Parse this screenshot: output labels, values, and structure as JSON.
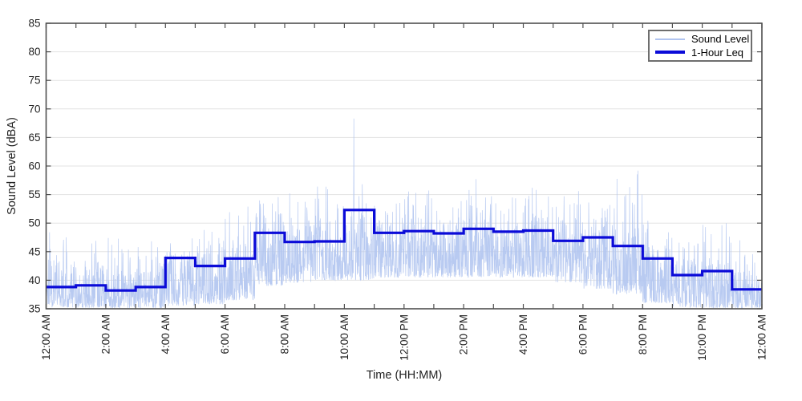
{
  "chart_data": {
    "type": "line",
    "title": "",
    "xlabel": "Time (HH:MM)",
    "ylabel": "Sound Level (dBA)",
    "x_range_hours": [
      0,
      24
    ],
    "ylim": [
      35,
      85
    ],
    "yticks": [
      35,
      40,
      45,
      50,
      55,
      60,
      65,
      70,
      75,
      80,
      85
    ],
    "xtick_every_hours": 1,
    "xtick_labels": [
      {
        "hour": 0,
        "label": "12:00 AM"
      },
      {
        "hour": 2,
        "label": "2:00 AM"
      },
      {
        "hour": 4,
        "label": "4:00 AM"
      },
      {
        "hour": 6,
        "label": "6:00 AM"
      },
      {
        "hour": 8,
        "label": "8:00 AM"
      },
      {
        "hour": 10,
        "label": "10:00 AM"
      },
      {
        "hour": 12,
        "label": "12:00 PM"
      },
      {
        "hour": 14,
        "label": "2:00 PM"
      },
      {
        "hour": 16,
        "label": "4:00 PM"
      },
      {
        "hour": 18,
        "label": "6:00 PM"
      },
      {
        "hour": 20,
        "label": "8:00 PM"
      },
      {
        "hour": 22,
        "label": "10:00 PM"
      },
      {
        "hour": 24,
        "label": "12:00 AM"
      }
    ],
    "grid": "horizontal",
    "legend": {
      "position": "top-right",
      "entries": [
        {
          "label": "Sound Level",
          "color": "#b0c4f0",
          "line_width": 1.5
        },
        {
          "label": "1-Hour Leq",
          "color": "#0b0bd8",
          "line_width": 4
        }
      ]
    },
    "series": [
      {
        "name": "Sound Level",
        "render": "noisy-line",
        "color": "#b0c4f0",
        "stroke_width": 0.7,
        "samples_per_hour": 120,
        "seed": 1337,
        "spike_probability": 0.09,
        "hourly_envelope_dBA": [
          [
            35.2,
            43.0,
            48.5
          ],
          [
            35.2,
            42.5,
            47.0
          ],
          [
            35.1,
            41.5,
            47.5
          ],
          [
            35.1,
            42.0,
            47.0
          ],
          [
            35.5,
            44.5,
            49.0
          ],
          [
            35.8,
            44.5,
            49.0
          ],
          [
            36.5,
            46.5,
            53.0
          ],
          [
            39.0,
            51.0,
            55.5
          ],
          [
            39.5,
            50.0,
            54.5
          ],
          [
            40.0,
            50.5,
            56.5
          ],
          [
            40.0,
            51.0,
            57.0
          ],
          [
            40.5,
            50.5,
            55.0
          ],
          [
            40.5,
            51.0,
            56.0
          ],
          [
            40.5,
            50.5,
            54.5
          ],
          [
            40.5,
            51.0,
            57.5
          ],
          [
            40.5,
            50.5,
            55.5
          ],
          [
            40.5,
            51.0,
            56.5
          ],
          [
            39.5,
            50.0,
            55.5
          ],
          [
            38.5,
            49.5,
            55.0
          ],
          [
            37.5,
            48.5,
            59.0
          ],
          [
            36.0,
            46.0,
            50.5
          ],
          [
            35.2,
            43.5,
            48.0
          ],
          [
            35.1,
            43.0,
            50.0
          ],
          [
            35.1,
            41.5,
            47.0
          ]
        ],
        "notable_peaks": [
          {
            "hour": 0.12,
            "dBA": 48.4
          },
          {
            "hour": 2.08,
            "dBA": 47.4
          },
          {
            "hour": 5.3,
            "dBA": 48.8
          },
          {
            "hour": 6.77,
            "dBA": 52.9
          },
          {
            "hour": 8.17,
            "dBA": 55.2
          },
          {
            "hour": 9.1,
            "dBA": 56.4
          },
          {
            "hour": 10.32,
            "dBA": 68.3
          },
          {
            "hour": 10.6,
            "dBA": 56.8
          },
          {
            "hour": 12.4,
            "dBA": 55.3
          },
          {
            "hour": 14.42,
            "dBA": 57.7
          },
          {
            "hour": 16.3,
            "dBA": 56.2
          },
          {
            "hour": 17.85,
            "dBA": 55.6
          },
          {
            "hour": 19.84,
            "dBA": 59.2
          },
          {
            "hour": 22.8,
            "dBA": 50.0
          }
        ]
      },
      {
        "name": "1-Hour Leq",
        "render": "step",
        "color": "#0b0bd8",
        "stroke_width": 3.2,
        "hourly_leq_dBA": [
          38.8,
          39.1,
          38.2,
          38.8,
          43.9,
          42.5,
          43.8,
          48.3,
          46.7,
          46.8,
          52.3,
          48.3,
          48.6,
          48.2,
          49.0,
          48.5,
          48.7,
          46.9,
          47.5,
          46.0,
          43.8,
          40.9,
          41.6,
          38.4
        ]
      }
    ],
    "colors": {
      "axis": "#4f4f4f",
      "grid": "#e3e3e3",
      "tick_text": "#1f1f1f",
      "background": "#ffffff"
    }
  }
}
